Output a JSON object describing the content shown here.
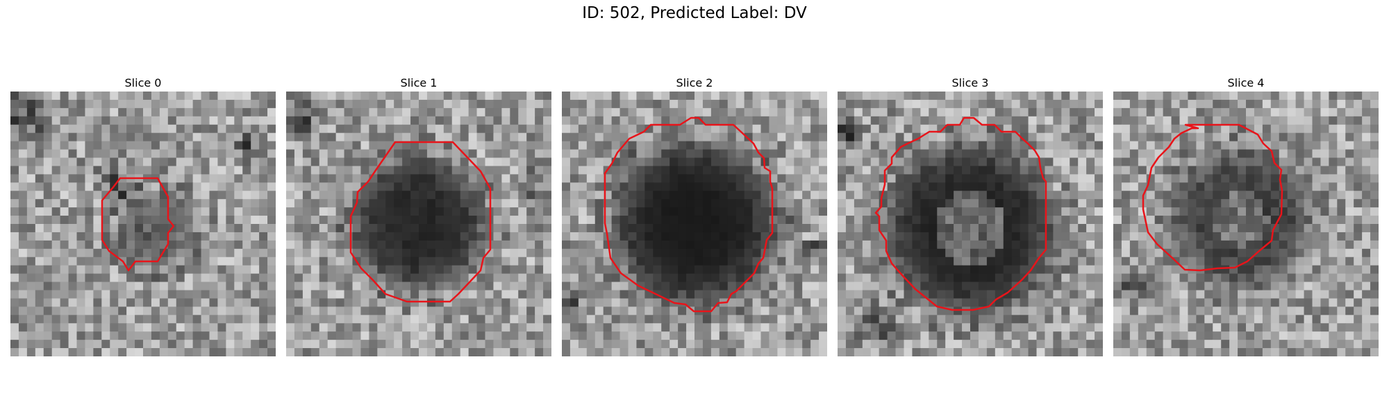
{
  "figure": {
    "title": "ID: 502, Predicted Label: DV"
  },
  "colors": {
    "contour": "#e8141a"
  },
  "panels": [
    {
      "title": "Slice 0",
      "name": "slice-0"
    },
    {
      "title": "Slice 1",
      "name": "slice-1"
    },
    {
      "title": "Slice 2",
      "name": "slice-2"
    },
    {
      "title": "Slice 3",
      "name": "slice-3"
    },
    {
      "title": "Slice 4",
      "name": "slice-4"
    }
  ]
}
